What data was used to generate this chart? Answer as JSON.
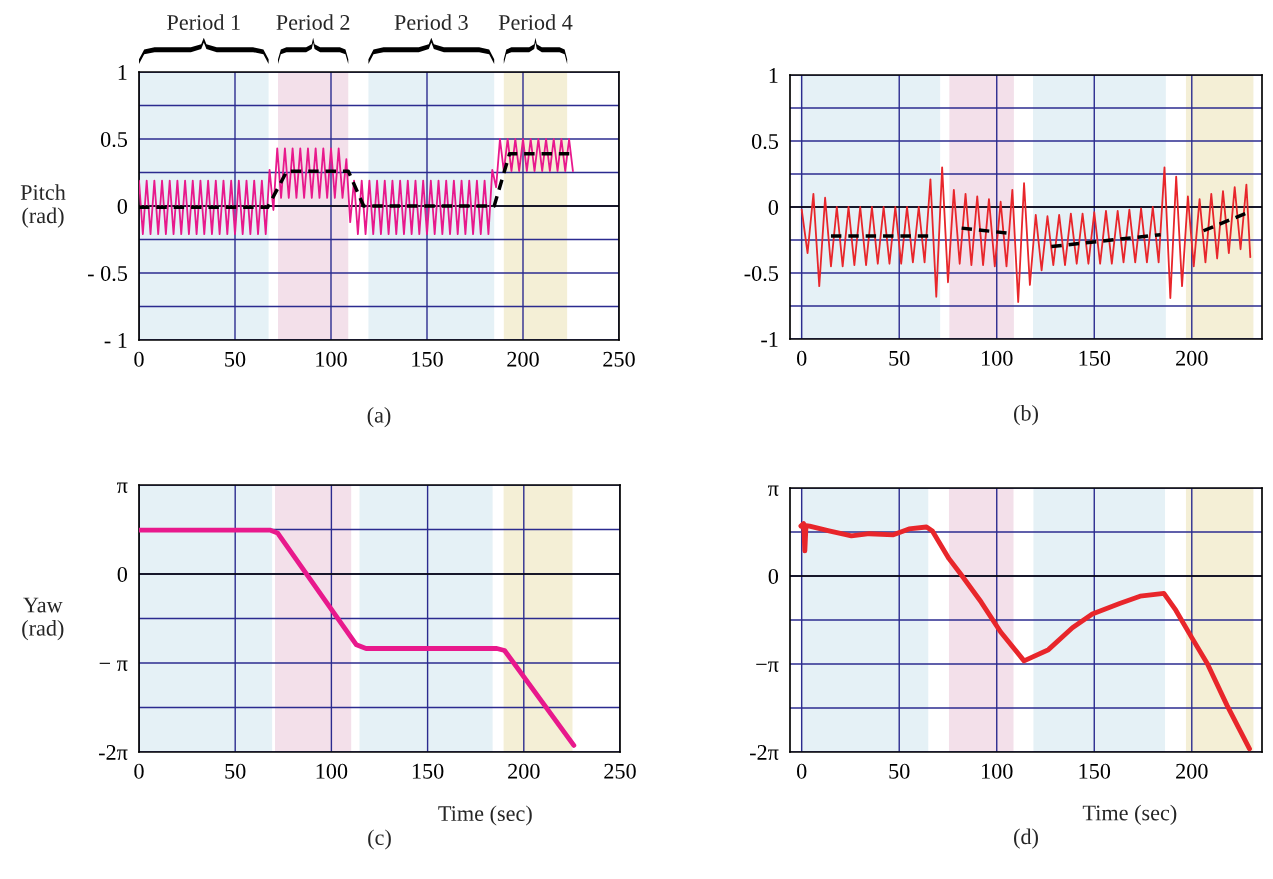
{
  "chart_data": [
    {
      "type": "line",
      "ylabel": "Pitch\n(rad)",
      "annotations": [
        "(a)"
      ],
      "xlim": [
        0,
        250
      ],
      "xticks": [
        0,
        50,
        100,
        150,
        200,
        250
      ],
      "ylim": [
        -1,
        1
      ],
      "yticks": [
        1,
        {
          "value": 0.75,
          "label": null
        },
        0.5,
        {
          "value": 0.25,
          "label": null
        },
        0,
        {
          "value": -0.25,
          "label": null
        },
        {
          "value": -0.5,
          "label": "- 0.5"
        },
        {
          "value": -0.75,
          "label": null
        },
        {
          "value": -1,
          "label": "- 1"
        }
      ],
      "grid": true,
      "ref_lines": [
        {
          "axis": "y",
          "value": 0,
          "color": "#000000"
        }
      ],
      "bands": [
        {
          "axis": "x",
          "from": 0,
          "to": 67.5,
          "label": "Period 1",
          "color": "#e5f1f6"
        },
        {
          "axis": "x",
          "from": 72.4,
          "to": 109,
          "label": "Period 2",
          "color": "#f3e0ea"
        },
        {
          "axis": "x",
          "from": 119.5,
          "to": 185,
          "label": "Period 3",
          "color": "#e5f1f6"
        },
        {
          "axis": "x",
          "from": 190,
          "to": 223,
          "label": "Period 4",
          "color": "#f4efd6"
        }
      ],
      "series": [
        {
          "color": "#e8198c",
          "x": [
            0,
            2,
            4,
            6,
            8,
            10,
            12,
            14,
            16,
            18,
            20,
            22,
            24,
            26,
            28,
            30,
            32,
            34,
            36,
            38,
            40,
            42,
            44,
            46,
            48,
            50,
            52,
            54,
            56,
            58,
            60,
            62,
            64,
            66,
            68,
            70,
            72,
            74,
            76,
            78,
            80,
            82,
            84,
            86,
            88,
            90,
            92,
            94,
            96,
            98,
            100,
            102,
            104,
            106,
            108,
            110,
            112,
            114,
            116,
            118,
            120,
            122,
            124,
            126,
            128,
            130,
            132,
            134,
            136,
            138,
            140,
            142,
            144,
            146,
            148,
            150,
            152,
            154,
            156,
            158,
            160,
            162,
            164,
            166,
            168,
            170,
            172,
            174,
            176,
            178,
            180,
            182,
            184,
            186,
            188,
            190,
            192,
            194,
            196,
            198,
            200,
            202,
            204,
            206,
            208,
            210,
            212,
            214,
            216,
            218,
            220,
            222,
            224,
            226
          ],
          "values": [
            0.19,
            -0.21,
            0.19,
            -0.21,
            0.19,
            -0.21,
            0.19,
            -0.21,
            0.19,
            -0.21,
            0.19,
            -0.21,
            0.19,
            -0.21,
            0.19,
            -0.21,
            0.19,
            -0.21,
            0.19,
            -0.21,
            0.19,
            -0.21,
            0.19,
            -0.21,
            0.19,
            -0.21,
            0.19,
            -0.21,
            0.19,
            -0.21,
            0.19,
            -0.21,
            0.19,
            -0.21,
            0.27,
            -0.03,
            0.43,
            0.06,
            0.43,
            0.06,
            0.43,
            0.06,
            0.43,
            0.06,
            0.43,
            0.06,
            0.43,
            0.06,
            0.43,
            0.06,
            0.43,
            0.06,
            0.43,
            0.06,
            0.35,
            -0.12,
            0.19,
            -0.21,
            0.19,
            -0.21,
            0.19,
            -0.21,
            0.19,
            -0.21,
            0.19,
            -0.21,
            0.19,
            -0.21,
            0.19,
            -0.21,
            0.19,
            -0.21,
            0.19,
            -0.21,
            0.19,
            -0.21,
            0.19,
            -0.21,
            0.19,
            -0.21,
            0.19,
            -0.21,
            0.19,
            -0.21,
            0.19,
            -0.21,
            0.19,
            -0.21,
            0.19,
            -0.21,
            0.19,
            -0.21,
            0.27,
            0.14,
            0.5,
            0.26,
            0.5,
            0.26,
            0.5,
            0.26,
            0.5,
            0.26,
            0.5,
            0.26,
            0.5,
            0.26,
            0.5,
            0.26,
            0.5,
            0.26,
            0.5,
            0.26,
            0.5,
            0.26
          ]
        },
        {
          "color": "#000000",
          "line_style": "dashed",
          "x": [
            0,
            67,
            77,
            109,
            117,
            185,
            193,
            226
          ],
          "values": [
            -0.01,
            -0.01,
            0.26,
            0.26,
            0.0,
            0.0,
            0.39,
            0.39
          ]
        }
      ]
    },
    {
      "type": "line",
      "annotations": [
        "(b)"
      ],
      "xlim": [
        -6,
        236
      ],
      "xticks": [
        0,
        50,
        100,
        150,
        200
      ],
      "ylim": [
        -1,
        1
      ],
      "yticks": [
        1,
        {
          "value": 0.75,
          "label": null
        },
        0.5,
        {
          "value": 0.25,
          "label": null
        },
        0,
        {
          "value": -0.25,
          "label": null
        },
        -0.5,
        {
          "value": -0.75,
          "label": null
        },
        -1
      ],
      "grid": true,
      "ref_lines": [
        {
          "axis": "y",
          "value": 0,
          "color": "#000000"
        }
      ],
      "bands": [
        {
          "axis": "x",
          "from": -1,
          "to": 71,
          "color": "#e5f1f6"
        },
        {
          "axis": "x",
          "from": 75.7,
          "to": 108.8,
          "color": "#f3e0ea"
        },
        {
          "axis": "x",
          "from": 118.6,
          "to": 186.7,
          "color": "#e5f1f6"
        },
        {
          "axis": "x",
          "from": 197,
          "to": 231.6,
          "color": "#f4efd6"
        }
      ],
      "series": [
        {
          "color": "#e8262b",
          "x": [
            0,
            3,
            6,
            9,
            12,
            15,
            18,
            21,
            24,
            27,
            30,
            33,
            36,
            39,
            42,
            45,
            48,
            51,
            54,
            57,
            60,
            63,
            66,
            69,
            72,
            75,
            78,
            81,
            84,
            87,
            90,
            93,
            96,
            99,
            102,
            105,
            108,
            111,
            114,
            117,
            120,
            123,
            126,
            129,
            132,
            135,
            138,
            141,
            144,
            147,
            150,
            153,
            156,
            159,
            162,
            165,
            168,
            171,
            174,
            177,
            180,
            183,
            186,
            189,
            192,
            195,
            198,
            201,
            204,
            207,
            210,
            213,
            216,
            219,
            222,
            225,
            228,
            230
          ],
          "values": [
            -0.02,
            -0.35,
            0.1,
            -0.6,
            0.07,
            -0.45,
            0.0,
            -0.45,
            0.0,
            -0.44,
            0.0,
            -0.44,
            0.0,
            -0.43,
            0.0,
            -0.43,
            0.0,
            -0.43,
            0.0,
            -0.42,
            0.0,
            -0.42,
            0.21,
            -0.68,
            0.3,
            -0.57,
            0.13,
            -0.43,
            0.1,
            -0.44,
            0.08,
            -0.44,
            0.06,
            -0.45,
            0.04,
            -0.45,
            0.13,
            -0.72,
            0.18,
            -0.59,
            -0.06,
            -0.48,
            -0.07,
            -0.44,
            -0.06,
            -0.44,
            -0.05,
            -0.43,
            -0.05,
            -0.43,
            -0.04,
            -0.43,
            -0.03,
            -0.43,
            -0.03,
            -0.42,
            -0.02,
            -0.42,
            -0.01,
            -0.42,
            0.0,
            -0.42,
            0.3,
            -0.69,
            0.23,
            -0.6,
            0.08,
            -0.45,
            0.06,
            -0.42,
            0.1,
            -0.39,
            0.12,
            -0.35,
            0.15,
            -0.32,
            0.17,
            -0.38
          ]
        },
        {
          "color": "#000000",
          "line_style": "dashed",
          "x": [
            15,
            65,
            73,
            82,
            107,
            117,
            128,
            184,
            195,
            206,
            229
          ],
          "values": [
            -0.22,
            -0.22,
            null,
            -0.16,
            -0.2,
            null,
            -0.3,
            -0.21,
            null,
            -0.18,
            -0.04
          ]
        }
      ]
    },
    {
      "type": "line",
      "xlabel": "Time (sec)",
      "ylabel": "Yaw\n(rad)",
      "annotations": [
        "(c)"
      ],
      "xlim": [
        0,
        250
      ],
      "xticks": [
        0,
        50,
        100,
        150,
        200,
        250
      ],
      "ylim": [
        -6.2832,
        3.1416
      ],
      "yticks": [
        {
          "value": 3.1416,
          "label": "π"
        },
        {
          "value": 1.5708,
          "label": null
        },
        0,
        {
          "value": -1.5708,
          "label": null
        },
        {
          "value": -3.1416,
          "label": "− π"
        },
        {
          "value": -4.7124,
          "label": null
        },
        {
          "value": -6.2832,
          "label": "-2π"
        }
      ],
      "grid": true,
      "ref_lines": [
        {
          "axis": "y",
          "value": 0,
          "color": "#000000"
        }
      ],
      "bands": [
        {
          "axis": "x",
          "from": 0,
          "to": 69.2,
          "color": "#e5f1f6"
        },
        {
          "axis": "x",
          "from": 70.7,
          "to": 110.3,
          "color": "#f3e0ea"
        },
        {
          "axis": "x",
          "from": 114.6,
          "to": 183.8,
          "color": "#e5f1f6"
        },
        {
          "axis": "x",
          "from": 189.5,
          "to": 225.3,
          "color": "#f4efd6"
        }
      ],
      "series": [
        {
          "color": "#e8198c",
          "x": [
            0,
            68,
            72,
            113,
            118,
            186,
            190,
            226
          ],
          "values": [
            1.55,
            1.55,
            1.45,
            -2.5,
            -2.63,
            -2.63,
            -2.7,
            -6.05
          ]
        }
      ]
    },
    {
      "type": "line",
      "xlabel": "Time (sec)",
      "annotations": [
        "(d)"
      ],
      "xlim": [
        -6,
        236
      ],
      "xticks": [
        0,
        50,
        100,
        150,
        200
      ],
      "ylim": [
        -6.2832,
        3.1416
      ],
      "yticks": [
        {
          "value": 3.1416,
          "label": "π"
        },
        {
          "value": 1.5708,
          "label": null
        },
        0,
        {
          "value": -1.5708,
          "label": null
        },
        {
          "value": -3.1416,
          "label": "−π"
        },
        {
          "value": -4.7124,
          "label": null
        },
        {
          "value": -6.2832,
          "label": "-2π"
        }
      ],
      "grid": true,
      "ref_lines": [
        {
          "axis": "y",
          "value": 0,
          "color": "#000000"
        }
      ],
      "bands": [
        {
          "axis": "x",
          "from": -0.6,
          "to": 64.9,
          "color": "#e5f1f6"
        },
        {
          "axis": "x",
          "from": 75.5,
          "to": 108.6,
          "color": "#f3e0ea"
        },
        {
          "axis": "x",
          "from": 118.8,
          "to": 186.3,
          "color": "#e5f1f6"
        },
        {
          "axis": "x",
          "from": 197,
          "to": 231.6,
          "color": "#f4efd6"
        }
      ],
      "series": [
        {
          "color": "#e8262b",
          "x": [
            -0.4,
            1.0,
            1.6,
            2.2,
            4,
            14,
            25.5,
            34.7,
            47,
            55,
            64,
            67,
            75.5,
            81.6,
            92,
            102,
            114,
            126.5,
            138.8,
            149,
            163,
            173.5,
            185.7,
            191.8,
            200,
            208,
            218,
            229.6
          ],
          "values": [
            1.78,
            1.87,
            0.9,
            1.8,
            1.78,
            1.61,
            1.43,
            1.51,
            1.47,
            1.68,
            1.75,
            1.61,
            0.62,
            0.06,
            -0.93,
            -2.0,
            -3.03,
            -2.63,
            -1.85,
            -1.36,
            -0.98,
            -0.72,
            -0.62,
            -1.22,
            -2.2,
            -3.13,
            -4.61,
            -6.17
          ]
        }
      ]
    }
  ]
}
